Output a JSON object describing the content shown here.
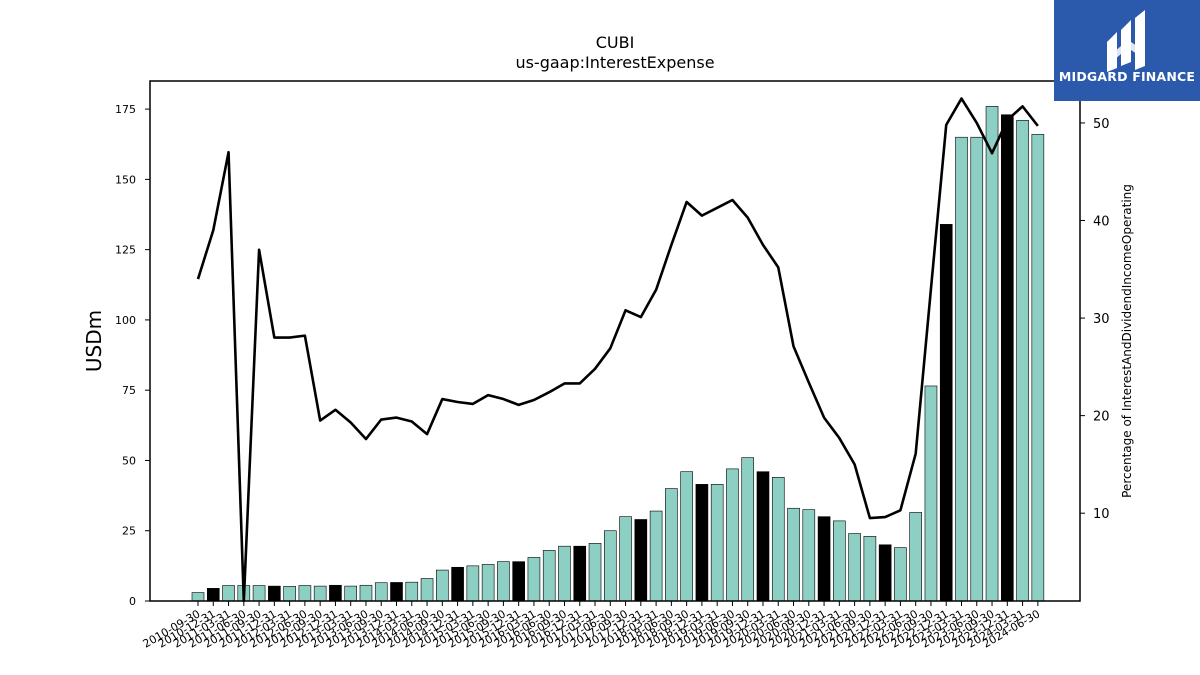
{
  "chart_data": {
    "type": "bar",
    "title": "CUBI",
    "subtitle": "us-gaap:InterestExpense",
    "ylabel": "USDm",
    "ylabel_right": "Percentage of InterestAndDividendIncomeOperating",
    "ylim": [
      0,
      185
    ],
    "yticks": [
      0,
      25,
      50,
      75,
      100,
      125,
      150,
      175
    ],
    "ylim_right": [
      1,
      54.3
    ],
    "yticks_right": [
      10,
      20,
      30,
      40,
      50
    ],
    "grid": false,
    "categories": [
      "2010-09-30",
      "2010-12-31",
      "2011-03-31",
      "2011-06-30",
      "2011-09-30",
      "2011-12-31",
      "2012-03-31",
      "2012-06-30",
      "2012-09-30",
      "2012-12-31",
      "2013-03-31",
      "2013-06-30",
      "2013-09-30",
      "2013-12-31",
      "2014-03-31",
      "2014-06-30",
      "2014-09-30",
      "2014-12-31",
      "2015-03-31",
      "2015-06-30",
      "2015-09-30",
      "2015-12-31",
      "2016-03-31",
      "2016-06-30",
      "2016-09-30",
      "2016-12-31",
      "2017-03-31",
      "2017-06-30",
      "2017-09-30",
      "2017-12-31",
      "2018-03-31",
      "2018-06-30",
      "2018-09-30",
      "2018-12-31",
      "2019-03-31",
      "2019-06-30",
      "2019-09-30",
      "2019-12-31",
      "2020-03-31",
      "2020-06-30",
      "2020-09-30",
      "2020-12-31",
      "2021-03-31",
      "2021-06-30",
      "2021-09-30",
      "2021-12-31",
      "2022-03-31",
      "2022-06-30",
      "2022-09-30",
      "2022-12-31",
      "2023-03-31",
      "2023-06-30",
      "2023-09-30",
      "2023-12-31",
      "2024-03-31",
      "2024-06-30"
    ],
    "series": [
      {
        "type": "bar",
        "axis": "left",
        "values": [
          3,
          4.5,
          5.5,
          5.5,
          5.5,
          5.3,
          5.2,
          5.5,
          5.3,
          5.6,
          5.3,
          5.6,
          6.5,
          6.6,
          6.7,
          8,
          11,
          12,
          12.5,
          13,
          14,
          14,
          15.5,
          18,
          19.5,
          19.5,
          20.5,
          25,
          30,
          29,
          32,
          40,
          46,
          41.5,
          41.5,
          47,
          51,
          46,
          44,
          33,
          32.5,
          30,
          28.5,
          24,
          23,
          20,
          19,
          31.5,
          76.5,
          134,
          165,
          165,
          176,
          173,
          171,
          166
        ],
        "highlight": [
          false,
          true,
          false,
          false,
          false,
          true,
          false,
          false,
          false,
          true,
          false,
          false,
          false,
          true,
          false,
          false,
          false,
          true,
          false,
          false,
          false,
          true,
          false,
          false,
          false,
          true,
          false,
          false,
          false,
          true,
          false,
          false,
          false,
          true,
          false,
          false,
          false,
          true,
          false,
          false,
          false,
          true,
          false,
          false,
          false,
          true,
          false,
          false,
          false,
          true,
          false,
          false,
          false,
          true,
          false,
          false
        ]
      },
      {
        "type": "line",
        "axis": "right",
        "values": [
          34,
          39,
          47,
          1,
          37,
          28,
          28,
          28.2,
          19.5,
          20.6,
          19.3,
          17.6,
          19.6,
          19.8,
          19.4,
          18.1,
          21.7,
          21.4,
          21.2,
          22.1,
          21.7,
          21.1,
          21.6,
          22.4,
          23.3,
          23.3,
          24.8,
          26.9,
          30.8,
          30.1,
          32.9,
          37.5,
          41.9,
          40.5,
          41.3,
          42.1,
          40.3,
          37.5,
          35.2,
          27.1,
          23.4,
          19.8,
          17.7,
          15,
          9.5,
          9.6,
          10.3,
          16.1,
          33,
          49.8,
          52.5,
          50,
          46.9,
          50.3,
          51.7,
          49.7
        ]
      }
    ],
    "colors": {
      "bar": "#8ecfc4",
      "bar_highlight": "#000000",
      "line": "#000000",
      "brand_bg": "#2b5aad",
      "brand_logo": "#ffffff"
    }
  },
  "brand": {
    "name": "MIDGARD FINANCE",
    "icon": "midgard-logo-icon"
  }
}
